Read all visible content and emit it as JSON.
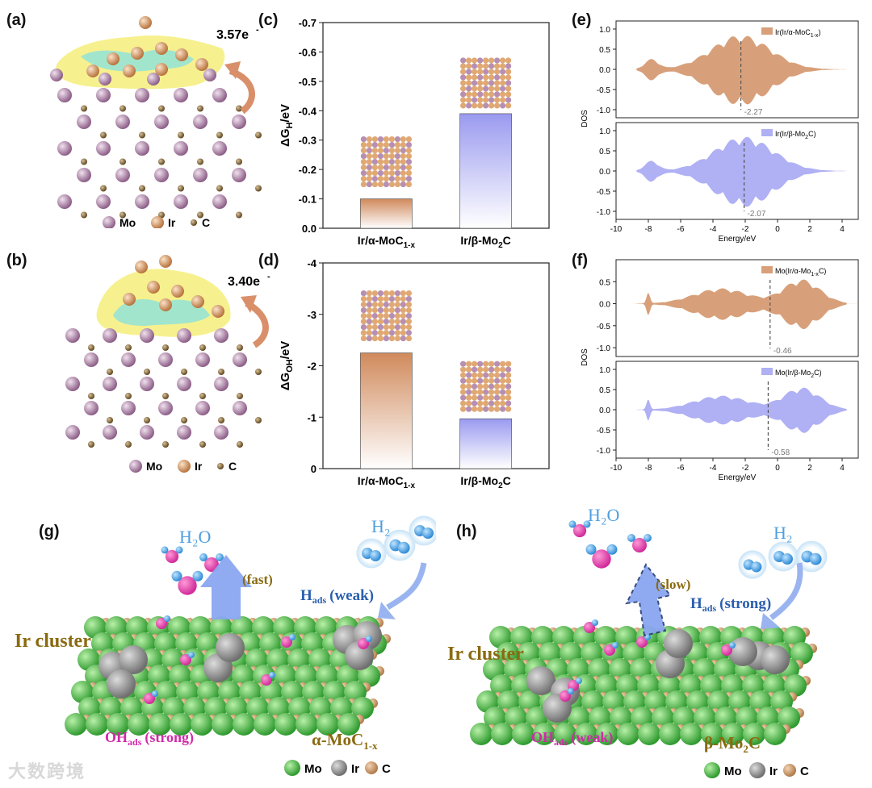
{
  "panels": {
    "a": {
      "label": "(a)",
      "charge": "3.57e",
      "charge_sup": "-",
      "legend": [
        "Mo",
        "Ir",
        "C"
      ]
    },
    "b": {
      "label": "(b)",
      "charge": "3.40e",
      "charge_sup": "-",
      "legend": [
        "Mo",
        "Ir",
        "C"
      ]
    },
    "c": {
      "label": "(c)"
    },
    "d": {
      "label": "(d)"
    },
    "e": {
      "label": "(e)"
    },
    "f": {
      "label": "(f)"
    },
    "g": {
      "label": "(g)",
      "h2o": "H₂O",
      "h2": "H₂",
      "fast": "(fast)",
      "hads": "H",
      "hads_sub": "ads",
      "hads_note": "(weak)",
      "cluster": "Ir cluster",
      "ohads": "OH",
      "ohads_sub": "ads",
      "ohads_note": "(strong)",
      "substrate": "α-MoC",
      "substrate_sub": "1-x",
      "legend": [
        "Mo",
        "Ir",
        "C"
      ]
    },
    "h": {
      "label": "(h)",
      "h2o": "H₂O",
      "h2": "H₂",
      "slow": "(slow)",
      "hads": "H",
      "hads_sub": "ads",
      "hads_note": "(strong)",
      "cluster": "Ir cluster",
      "ohads": "OH",
      "ohads_sub": "ads",
      "ohads_note": "(weak)",
      "substrate": "β-Mo",
      "substrate_sub": "2",
      "substrate_tail": "C",
      "legend": [
        "Mo",
        "Ir",
        "C"
      ]
    }
  },
  "colors": {
    "orange": "#d4956a",
    "blue": "#a9a9f0",
    "mo_atom": "#b58cb0",
    "ir_atom": "#d9a070",
    "c_atom": "#8a7040",
    "green": "#4fc04f",
    "pink": "#e052a8",
    "h2blue": "#4fa6e6",
    "label_gold": "#8a6a10",
    "oh_magenta": "#d02aa8"
  },
  "chart_data": [
    {
      "type": "bar",
      "id": "c",
      "categories": [
        "Ir/α-MoC1-x",
        "Ir/β-Mo2C"
      ],
      "values": [
        -0.1,
        -0.39
      ],
      "ylabel": "ΔGH/eV",
      "ylim": [
        0.0,
        -0.7
      ],
      "yticks": [
        "0.0",
        "-0.1",
        "-0.2",
        "-0.3",
        "-0.4",
        "-0.5",
        "-0.6",
        "-0.7"
      ]
    },
    {
      "type": "bar",
      "id": "d",
      "categories": [
        "Ir/α-MoC1-x",
        "Ir/β-Mo2C"
      ],
      "values": [
        -2.25,
        -0.97
      ],
      "ylabel": "ΔGOH/eV",
      "ylim": [
        0,
        -4
      ],
      "yticks": [
        "0",
        "-1",
        "-2",
        "-3",
        "-4"
      ]
    },
    {
      "type": "area",
      "id": "e1",
      "series": [
        {
          "name": "Ir(Ir/α-MoC1-x)",
          "center": -2.27
        }
      ],
      "xlim": [
        -10,
        5
      ],
      "ylim": [
        -1.2,
        1.2
      ],
      "yticks": [
        "1.0",
        "0.5",
        "0.0",
        "-0.5",
        "-1.0"
      ],
      "center_label": "-2.27"
    },
    {
      "type": "area",
      "id": "e2",
      "series": [
        {
          "name": "Ir(Ir/β-Mo2C)",
          "center": -2.07
        }
      ],
      "xlim": [
        -10,
        5
      ],
      "ylim": [
        -1.2,
        1.2
      ],
      "yticks": [
        "1.0",
        "0.5",
        "0.0",
        "-0.5",
        "-1.0"
      ],
      "center_label": "-2.07",
      "xticks": [
        "-10",
        "-8",
        "-6",
        "-4",
        "-2",
        "0",
        "2",
        "4"
      ],
      "xlabel": "Energy/eV",
      "ylabel": "DOS"
    },
    {
      "type": "area",
      "id": "f1",
      "series": [
        {
          "name": "Mo(Ir/α-Mo1-xC)",
          "center": -0.46
        }
      ],
      "xlim": [
        -10,
        5
      ],
      "ylim": [
        -1.2,
        1.0
      ],
      "yticks": [
        "0.5",
        "0.0",
        "-0.5",
        "-1.0"
      ],
      "center_label": "-0.46"
    },
    {
      "type": "area",
      "id": "f2",
      "series": [
        {
          "name": "Mo(Ir/β-Mo2C)",
          "center": -0.58
        }
      ],
      "xlim": [
        -10,
        5
      ],
      "ylim": [
        -1.2,
        1.2
      ],
      "yticks": [
        "1.0",
        "0.5",
        "0.0",
        "-0.5",
        "-1.0"
      ],
      "center_label": "-0.58",
      "xticks": [
        "-10",
        "-8",
        "-6",
        "-4",
        "-2",
        "0",
        "2",
        "4"
      ],
      "xlabel": "Energy/eV",
      "ylabel": "DOS"
    }
  ],
  "watermark": "大数跨境"
}
